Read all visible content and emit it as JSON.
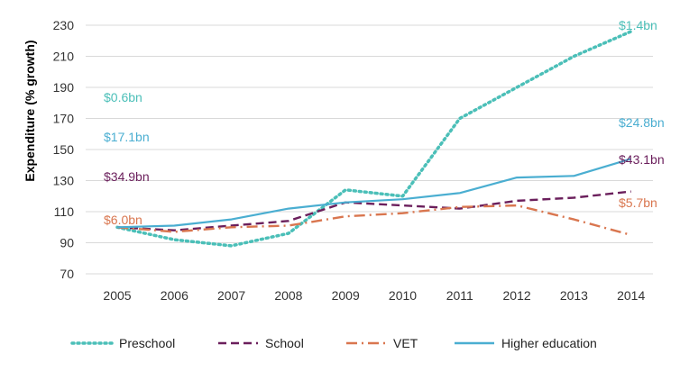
{
  "chart_data": {
    "type": "line",
    "title": "",
    "xlabel": "",
    "ylabel": "Expenditure (% growth)",
    "x": [
      "2005",
      "2006",
      "2007",
      "2008",
      "2009",
      "2010",
      "2011",
      "2012",
      "2013",
      "2014"
    ],
    "ylim": [
      70,
      230
    ],
    "yticks": [
      "70",
      "90",
      "110",
      "130",
      "150",
      "170",
      "190",
      "210",
      "230"
    ],
    "grid": "horizontal",
    "legend_position": "bottom",
    "series": [
      {
        "name": "Preschool",
        "color": "#4bbfb8",
        "style": "dotted",
        "values": [
          100,
          92,
          88,
          96,
          124,
          120,
          170,
          190,
          210,
          226
        ],
        "start_label": "$0.6bn",
        "end_label": "$1.4bn"
      },
      {
        "name": "School",
        "color": "#6b1f5c",
        "style": "dashed",
        "values": [
          100,
          98,
          101,
          104,
          116,
          114,
          112,
          117,
          119,
          123
        ],
        "start_label": "$34.9bn",
        "end_label": "$43.1bn"
      },
      {
        "name": "VET",
        "color": "#d9764f",
        "style": "dashdot",
        "values": [
          100,
          97,
          100,
          101,
          107,
          109,
          113,
          114,
          105,
          95
        ],
        "start_label": "$6.0bn",
        "end_label": "$5.7bn"
      },
      {
        "name": "Higher education",
        "color": "#4aaed1",
        "style": "solid",
        "values": [
          100,
          101,
          105,
          112,
          116,
          118,
          122,
          132,
          133,
          144
        ],
        "start_label": "$17.1bn",
        "end_label": "$24.8bn"
      }
    ]
  }
}
